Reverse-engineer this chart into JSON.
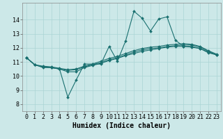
{
  "title": "",
  "xlabel": "Humidex (Indice chaleur)",
  "ylabel": "",
  "bg_color": "#cce8e8",
  "grid_color": "#aad4d4",
  "line_color": "#1a7070",
  "xlim": [
    -0.5,
    23.5
  ],
  "ylim": [
    7.5,
    15.2
  ],
  "xticks": [
    0,
    1,
    2,
    3,
    4,
    5,
    6,
    7,
    8,
    9,
    10,
    11,
    12,
    13,
    14,
    15,
    16,
    17,
    18,
    19,
    20,
    21,
    22,
    23
  ],
  "yticks": [
    8,
    9,
    10,
    11,
    12,
    13,
    14
  ],
  "lines": [
    {
      "x": [
        0,
        1,
        2,
        3,
        4,
        5,
        6,
        7,
        8,
        9,
        10,
        11,
        12,
        13,
        14,
        15,
        16,
        17,
        18,
        19,
        20,
        21,
        22,
        23
      ],
      "y": [
        11.3,
        10.8,
        10.6,
        10.6,
        10.5,
        8.5,
        9.7,
        10.85,
        10.85,
        10.85,
        12.1,
        11.05,
        12.5,
        14.6,
        14.1,
        13.2,
        14.05,
        14.2,
        12.55,
        12.1,
        12.05,
        11.95,
        11.65,
        11.5
      ]
    },
    {
      "x": [
        0,
        1,
        2,
        3,
        4,
        5,
        6,
        7,
        8,
        9,
        10,
        11,
        12,
        13,
        14,
        15,
        16,
        17,
        18,
        19,
        20,
        21,
        22,
        23
      ],
      "y": [
        11.3,
        10.8,
        10.65,
        10.6,
        10.5,
        10.3,
        10.3,
        10.6,
        10.75,
        10.9,
        11.1,
        11.25,
        11.45,
        11.6,
        11.75,
        11.85,
        11.95,
        12.05,
        12.1,
        12.1,
        12.1,
        11.95,
        11.7,
        11.5
      ]
    },
    {
      "x": [
        0,
        1,
        2,
        3,
        4,
        5,
        6,
        7,
        8,
        9,
        10,
        11,
        12,
        13,
        14,
        15,
        16,
        17,
        18,
        19,
        20,
        21,
        22,
        23
      ],
      "y": [
        11.3,
        10.8,
        10.65,
        10.6,
        10.5,
        10.4,
        10.45,
        10.65,
        10.8,
        10.95,
        11.15,
        11.3,
        11.5,
        11.7,
        11.85,
        11.95,
        12.0,
        12.1,
        12.15,
        12.2,
        12.2,
        12.05,
        11.75,
        11.5
      ]
    },
    {
      "x": [
        0,
        1,
        2,
        3,
        4,
        5,
        6,
        7,
        8,
        9,
        10,
        11,
        12,
        13,
        14,
        15,
        16,
        17,
        18,
        19,
        20,
        21,
        22,
        23
      ],
      "y": [
        11.3,
        10.8,
        10.7,
        10.65,
        10.55,
        10.45,
        10.5,
        10.7,
        10.85,
        11.05,
        11.25,
        11.4,
        11.6,
        11.8,
        11.95,
        12.05,
        12.1,
        12.2,
        12.25,
        12.3,
        12.25,
        12.1,
        11.8,
        11.55
      ]
    }
  ],
  "font_family": "monospace",
  "tick_fontsize": 6.0,
  "label_fontsize": 7.0
}
